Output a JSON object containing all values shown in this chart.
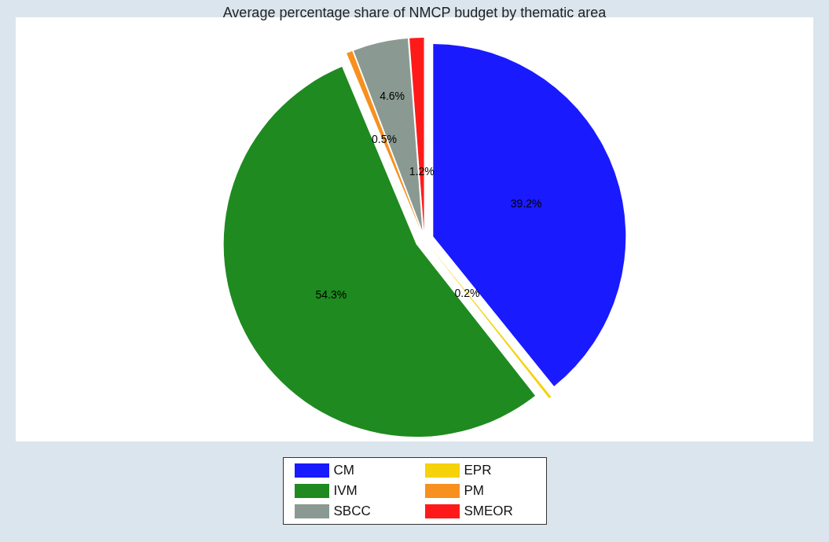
{
  "chart_data": {
    "type": "pie",
    "title": "Average percentage share of NMCP budget by thematic area",
    "categories": [
      "CM",
      "EPR",
      "IVM",
      "PM",
      "SBCC",
      "SMEOR"
    ],
    "values": [
      39.2,
      0.2,
      54.3,
      0.5,
      4.6,
      1.2
    ],
    "colors": [
      "#1a1aff",
      "#f5d20a",
      "#1f8a1f",
      "#f7901e",
      "#8a9a92",
      "#ff1a1a"
    ],
    "value_labels": [
      "39.2%",
      "0.2%",
      "54.3%",
      "0.5%",
      "4.6%",
      "1.2%"
    ],
    "legend": "bottom"
  }
}
